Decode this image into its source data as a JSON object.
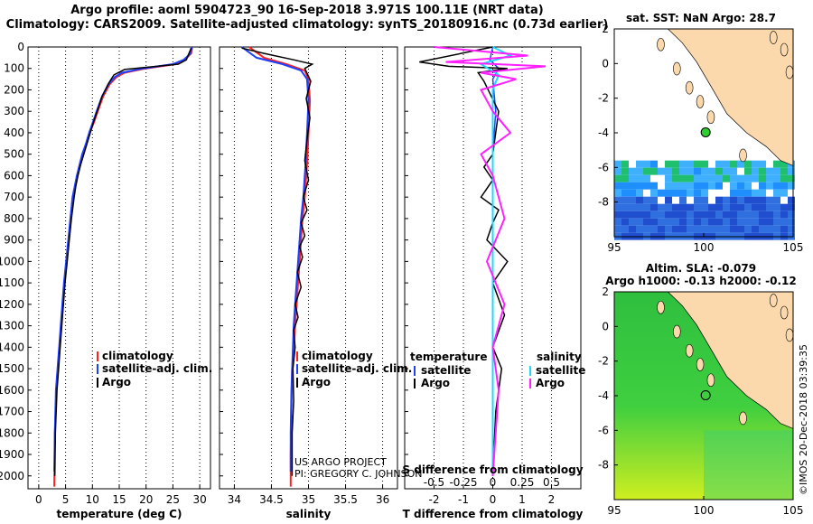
{
  "header": {
    "line1": "Argo profile: aoml 5904723_90 16-Sep-2018 3.971S 100.11E (NRT data)",
    "line2": "Climatology: CARS2009. Satellite-adjusted climatology: synTS_20180916.nc (0.73d earlier)"
  },
  "colors": {
    "climatology": "#ff2020",
    "satellite": "#1f3fff",
    "argo": "#000000",
    "sat_salinity": "#1fd7ff",
    "argo_salinity": "#ff20ff"
  },
  "depth_axis": {
    "ticks": [
      0,
      100,
      200,
      300,
      400,
      500,
      600,
      700,
      800,
      900,
      1000,
      1100,
      1200,
      1300,
      1400,
      1500,
      1600,
      1700,
      1800,
      1900,
      2000
    ],
    "range": [
      0,
      2060
    ]
  },
  "chart_data": [
    {
      "type": "line",
      "id": "temperature",
      "xlabel": "temperature (deg C)",
      "xlim": [
        -2,
        32
      ],
      "xticks": [
        0,
        5,
        10,
        15,
        20,
        25,
        30
      ],
      "ylim": [
        0,
        2060
      ],
      "legend": [
        "climatology",
        "satellite-adj. clim.",
        "Argo"
      ],
      "series": [
        {
          "name": "climatology",
          "x": [
            28.6,
            28.4,
            27.2,
            25.5,
            20,
            16,
            14.5,
            13.2,
            12,
            11,
            10.3,
            9.5,
            8.9,
            8.2,
            7.7,
            7.2,
            6.8,
            6.4,
            6,
            5.6,
            5.2,
            4.8,
            4.5,
            4.2,
            3.9,
            3.6,
            3.3,
            3.0,
            2.9
          ],
          "y": [
            0,
            30,
            60,
            80,
            100,
            120,
            140,
            175,
            230,
            300,
            350,
            400,
            450,
            500,
            550,
            600,
            650,
            700,
            800,
            900,
            1000,
            1100,
            1200,
            1300,
            1400,
            1500,
            1600,
            1800,
            2050
          ]
        },
        {
          "name": "satellite-adj. clim.",
          "x": [
            28.5,
            28.3,
            27,
            25,
            19.5,
            15.5,
            14.2,
            13,
            11.8,
            10.8,
            10.1,
            9.4,
            8.8,
            8.1,
            7.6,
            7.1,
            6.7,
            6.3,
            5.9,
            5.5,
            5.1,
            4.7,
            4.4,
            4.1,
            3.8,
            3.5,
            3.2,
            3.0,
            2.9
          ],
          "y": [
            0,
            30,
            60,
            80,
            100,
            120,
            140,
            175,
            230,
            300,
            350,
            400,
            450,
            500,
            550,
            600,
            650,
            700,
            800,
            900,
            1000,
            1100,
            1200,
            1300,
            1400,
            1500,
            1600,
            1800,
            1980
          ]
        },
        {
          "name": "Argo",
          "x": [
            28.4,
            27.5,
            26,
            22,
            16,
            14,
            13,
            11.8,
            10.9,
            10.2,
            9.6,
            9,
            8.4,
            7.8,
            7.3,
            6.9,
            6.6,
            6.1,
            5.7,
            5.3,
            4.9,
            4.6,
            4.3,
            4.0,
            3.7,
            3.4,
            3.1,
            3.0
          ],
          "y": [
            5,
            60,
            80,
            90,
            105,
            130,
            170,
            230,
            300,
            350,
            400,
            450,
            500,
            550,
            600,
            650,
            700,
            800,
            900,
            1000,
            1100,
            1200,
            1300,
            1400,
            1500,
            1600,
            1800,
            2000
          ]
        }
      ]
    },
    {
      "type": "line",
      "id": "salinity",
      "xlabel": "salinity",
      "xlim": [
        33.8,
        36.2
      ],
      "xticks": [
        34,
        34.5,
        35,
        35.5,
        36
      ],
      "ylim": [
        0,
        2060
      ],
      "legend": [
        "climatology",
        "satellite-adj. clim.",
        "Argo"
      ],
      "series": [
        {
          "name": "climatology",
          "x": [
            34.2,
            34.4,
            34.7,
            34.95,
            35.0,
            35.02,
            35.0,
            34.98,
            34.95,
            34.92,
            34.9,
            34.88,
            34.86,
            34.84,
            34.82,
            34.8,
            34.78,
            34.77,
            34.76,
            34.76
          ],
          "y": [
            0,
            50,
            80,
            110,
            150,
            250,
            400,
            550,
            700,
            800,
            900,
            1000,
            1100,
            1200,
            1300,
            1400,
            1500,
            1700,
            1900,
            2050
          ]
        },
        {
          "name": "satellite-adj. clim.",
          "x": [
            34.1,
            34.3,
            34.65,
            34.9,
            34.98,
            35.0,
            34.98,
            34.96,
            34.93,
            34.9,
            34.88,
            34.86,
            34.84,
            34.82,
            34.8,
            34.79,
            34.77,
            34.76,
            34.76
          ],
          "y": [
            0,
            50,
            80,
            110,
            150,
            250,
            400,
            550,
            700,
            800,
            900,
            1000,
            1100,
            1200,
            1300,
            1400,
            1600,
            1800,
            1980
          ]
        },
        {
          "name": "Argo",
          "x": [
            34.1,
            34.4,
            34.8,
            35.05,
            34.95,
            35.03,
            34.97,
            35.02,
            34.98,
            34.95,
            35.0,
            34.93,
            34.98,
            34.9,
            34.95,
            34.88,
            34.92,
            34.85,
            34.9,
            34.82,
            34.86,
            34.8,
            34.82,
            34.79,
            34.8,
            34.78,
            34.78
          ],
          "y": [
            5,
            30,
            60,
            80,
            100,
            160,
            240,
            330,
            430,
            530,
            620,
            700,
            760,
            820,
            880,
            930,
            980,
            1050,
            1120,
            1200,
            1260,
            1320,
            1400,
            1500,
            1650,
            1800,
            2000
          ]
        }
      ],
      "annotation": [
        "US ARGO PROJECT",
        "PI: GREGORY C. JOHNSON"
      ]
    },
    {
      "type": "line",
      "id": "difference",
      "xlabel": "T difference from climatology",
      "top_axis_label": "S difference from climatology",
      "xlim": [
        -3,
        3
      ],
      "xticks": [
        -2,
        -1,
        0,
        1,
        2
      ],
      "top_xticks": [
        -0.5,
        -0.25,
        0,
        0.25,
        0.5
      ],
      "top_xtick_labels": [
        "-0.5",
        "-0.25",
        "0",
        "0.25",
        "0.5"
      ],
      "ylim": [
        0,
        2060
      ],
      "legend_left_title": "temperature",
      "legend_right_title": "salinity",
      "legend": [
        "satellite",
        "Argo"
      ],
      "series": [
        {
          "name": "T satellite",
          "x": [
            0,
            -0.1,
            0.2,
            0,
            0.1,
            0,
            0,
            0,
            0,
            0
          ],
          "y": [
            0,
            60,
            100,
            150,
            300,
            500,
            800,
            1200,
            1600,
            2000
          ]
        },
        {
          "name": "T Argo",
          "x": [
            0,
            -2.5,
            -1.5,
            0.5,
            -0.5,
            -0.3,
            0.2,
            0,
            -0.3,
            0,
            -0.4,
            0.2,
            0,
            -0.2,
            0.5,
            0,
            0.4,
            0,
            0.3,
            0.1,
            0
          ],
          "y": [
            0,
            70,
            90,
            100,
            120,
            160,
            300,
            500,
            560,
            620,
            700,
            760,
            820,
            900,
            1000,
            1100,
            1250,
            1400,
            1500,
            1700,
            2000
          ]
        },
        {
          "name": "S satellite",
          "x": [
            0,
            0.15,
            -0.1,
            0.05,
            0,
            0,
            0,
            0,
            0,
            0,
            0
          ],
          "y": [
            0,
            40,
            80,
            130,
            200,
            400,
            700,
            1000,
            1300,
            1600,
            2000
          ]
        },
        {
          "name": "S Argo",
          "x": [
            -0.5,
            0.3,
            -0.4,
            0.45,
            -0.1,
            0.2,
            -0.1,
            0,
            0.15,
            -0.1,
            0,
            0.1,
            -0.05,
            0.1,
            0,
            0.05,
            0
          ],
          "y": [
            0,
            40,
            70,
            90,
            120,
            150,
            200,
            300,
            400,
            500,
            600,
            800,
            1000,
            1200,
            1400,
            1600,
            2000
          ]
        }
      ]
    },
    {
      "type": "heatmap",
      "id": "sst-map",
      "title": "sat. SST: NaN Argo: 28.7",
      "xlim": [
        95,
        105
      ],
      "ylim": [
        -10,
        2
      ],
      "xticks": [
        95,
        100,
        105
      ],
      "yticks": [
        -8,
        -6,
        -4,
        -2,
        0,
        2
      ],
      "argo_position": [
        100.11,
        -3.971
      ]
    },
    {
      "type": "heatmap",
      "id": "sla-map",
      "title": "Altim. SLA: -0.079",
      "subtitle": "Argo h1000: -0.13 h2000: -0.12",
      "xlim": [
        95,
        105
      ],
      "ylim": [
        -10,
        2
      ],
      "xticks": [
        95,
        100,
        105
      ],
      "yticks": [
        -8,
        -6,
        -4,
        -2,
        0,
        2
      ],
      "argo_position": [
        100.11,
        -3.971
      ]
    }
  ],
  "footer": {
    "credit": "©IMOS 20-Dec-2018 03:39:35"
  }
}
